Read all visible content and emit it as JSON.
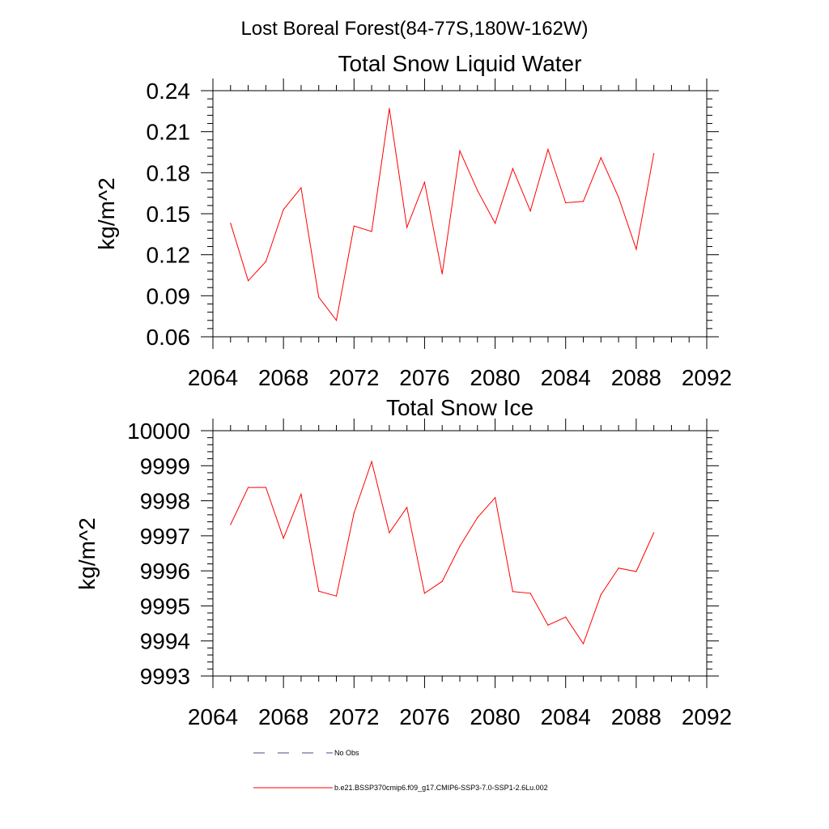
{
  "figure_title": "Lost Boreal Forest(84-77S,180W-162W)",
  "legend": {
    "obs_label": "No Obs",
    "model_label": "b.e21.BSSP370cmip6.f09_g17.CMIP6-SSP3-7.0-SSP1-2.6Lu.002",
    "obs_color": "#4a4a8a",
    "model_color": "#ff0000"
  },
  "chart_data": [
    {
      "type": "line",
      "title": "Total Snow Liquid Water",
      "ylabel": "kg/m^2",
      "xlabel": "",
      "xlim": [
        2064,
        2092
      ],
      "ylim": [
        0.06,
        0.24
      ],
      "x_ticks": [
        "2064",
        "2068",
        "2072",
        "2076",
        "2080",
        "2084",
        "2088",
        "2092"
      ],
      "y_ticks": [
        "0.06",
        "0.09",
        "0.12",
        "0.15",
        "0.18",
        "0.21",
        "0.24"
      ],
      "series": [
        {
          "name": "b.e21.BSSP370cmip6.f09_g17.CMIP6-SSP3-7.0-SSP1-2.6Lu.002",
          "color": "#ff0000",
          "x": [
            2065,
            2066,
            2067,
            2068,
            2069,
            2070,
            2071,
            2072,
            2073,
            2074,
            2075,
            2076,
            2077,
            2078,
            2079,
            2080,
            2081,
            2082,
            2083,
            2084,
            2085,
            2086,
            2087,
            2088,
            2089
          ],
          "values": [
            0.143,
            0.101,
            0.115,
            0.153,
            0.169,
            0.089,
            0.072,
            0.141,
            0.137,
            0.227,
            0.14,
            0.173,
            0.106,
            0.196,
            0.167,
            0.143,
            0.183,
            0.152,
            0.197,
            0.158,
            0.159,
            0.191,
            0.162,
            0.124,
            0.194
          ]
        }
      ]
    },
    {
      "type": "line",
      "title": "Total Snow Ice",
      "ylabel": "kg/m^2",
      "xlabel": "",
      "xlim": [
        2064,
        2092
      ],
      "ylim": [
        9993,
        10000
      ],
      "x_ticks": [
        "2064",
        "2068",
        "2072",
        "2076",
        "2080",
        "2084",
        "2088",
        "2092"
      ],
      "y_ticks": [
        "9993",
        "9994",
        "9995",
        "9996",
        "9997",
        "9998",
        "9999",
        "10000"
      ],
      "series": [
        {
          "name": "b.e21.BSSP370cmip6.f09_g17.CMIP6-SSP3-7.0-SSP1-2.6Lu.002",
          "color": "#ff0000",
          "x": [
            2065,
            2066,
            2067,
            2068,
            2069,
            2070,
            2071,
            2072,
            2073,
            2074,
            2075,
            2076,
            2077,
            2078,
            2079,
            2080,
            2081,
            2082,
            2083,
            2084,
            2085,
            2086,
            2087,
            2088,
            2089
          ],
          "values": [
            9997.32,
            9998.38,
            9998.38,
            9996.93,
            9998.19,
            9995.42,
            9995.28,
            9997.65,
            9999.12,
            9997.09,
            9997.81,
            9995.36,
            9995.7,
            9996.7,
            9997.52,
            9998.09,
            9995.41,
            9995.36,
            9994.45,
            9994.68,
            9993.92,
            9995.32,
            9996.08,
            9995.98,
            9997.09
          ]
        }
      ]
    }
  ]
}
